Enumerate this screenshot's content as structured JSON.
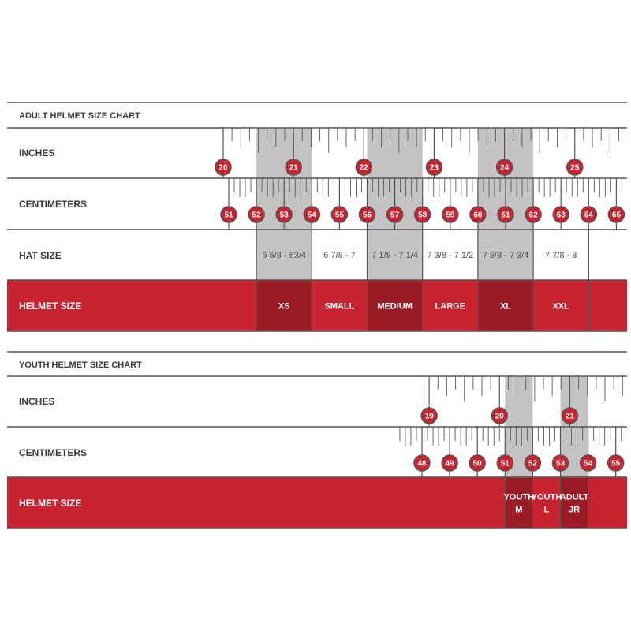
{
  "colors": {
    "red": "#c8232f",
    "dark_red": "#9a1d25",
    "shade": "#c4c2c3",
    "line": "#555555"
  },
  "adult": {
    "title": "ADULT HELMET SIZE CHART",
    "rows": {
      "inches": "INCHES",
      "centimeters": "CENTIMETERS",
      "hat_size": "HAT SIZE",
      "helmet_size": "HELMET SIZE"
    },
    "inch_markers": [
      "20",
      "21",
      "22",
      "23",
      "24",
      "25"
    ],
    "cm_markers": [
      "51",
      "52",
      "53",
      "54",
      "55",
      "56",
      "57",
      "58",
      "59",
      "60",
      "61",
      "62",
      "63",
      "64",
      "65"
    ],
    "hat_sizes": [
      {
        "range_cm": [
          52,
          54
        ],
        "label": "6 5/8 - 63/4",
        "shaded": true
      },
      {
        "range_cm": [
          54,
          56
        ],
        "label": "6 7/8 - 7",
        "shaded": false
      },
      {
        "range_cm": [
          56,
          58
        ],
        "label": "7 1/8 - 7 1/4",
        "shaded": true
      },
      {
        "range_cm": [
          58,
          60
        ],
        "label": "7 3/8 - 7 1/2",
        "shaded": false
      },
      {
        "range_cm": [
          60,
          62
        ],
        "label": "7 5/8 - 7 3/4",
        "shaded": true
      },
      {
        "range_cm": [
          62,
          64
        ],
        "label": "7 7/8 - 8",
        "shaded": false
      }
    ],
    "helmet_sizes": [
      {
        "range_cm": [
          52,
          54
        ],
        "label": "XS",
        "dark": true
      },
      {
        "range_cm": [
          54,
          56
        ],
        "label": "SMALL",
        "dark": false
      },
      {
        "range_cm": [
          56,
          58
        ],
        "label": "MEDIUM",
        "dark": true
      },
      {
        "range_cm": [
          58,
          60
        ],
        "label": "LARGE",
        "dark": false
      },
      {
        "range_cm": [
          60,
          62
        ],
        "label": "XL",
        "dark": true
      },
      {
        "range_cm": [
          62,
          64
        ],
        "label": "XXL",
        "dark": false
      }
    ]
  },
  "youth": {
    "title": "YOUTH HELMET SIZE CHART",
    "rows": {
      "inches": "INCHES",
      "centimeters": "CENTIMETERS",
      "helmet_size": "HELMET SIZE"
    },
    "inch_markers": [
      "19",
      "20",
      "21"
    ],
    "cm_markers": [
      "48",
      "49",
      "50",
      "51",
      "52",
      "53",
      "54",
      "55"
    ],
    "helmet_sizes": [
      {
        "range_cm": [
          51,
          52
        ],
        "label": [
          "YOUTH",
          "M"
        ],
        "dark": true
      },
      {
        "range_cm": [
          52,
          53
        ],
        "label": [
          "YOUTH",
          "L"
        ],
        "dark": false
      },
      {
        "range_cm": [
          53,
          54
        ],
        "label": [
          "ADULT",
          "JR"
        ],
        "dark": true
      }
    ]
  }
}
